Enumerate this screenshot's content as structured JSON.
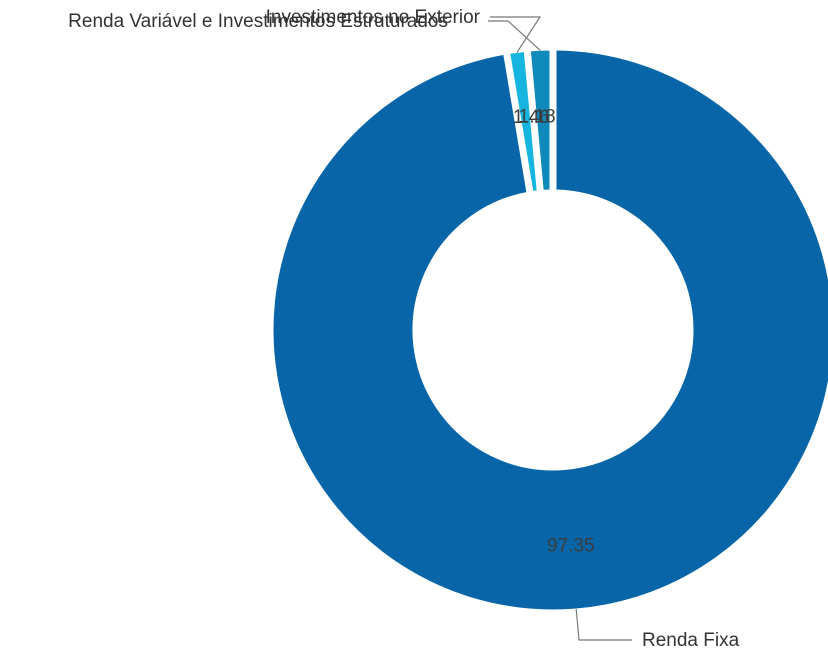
{
  "chart_data": {
    "type": "pie",
    "variant": "donut",
    "categories": [
      "Renda Fixa",
      "Renda Variável e Investimentos Estruturados",
      "Investimentos no Exterior"
    ],
    "values": [
      97.35,
      1.46,
      1.18
    ],
    "value_labels": [
      "97.35",
      "1.46",
      "1.18"
    ],
    "colors": [
      "#0866a8",
      "#1089bb",
      "#16b5df"
    ],
    "legend": "none"
  }
}
